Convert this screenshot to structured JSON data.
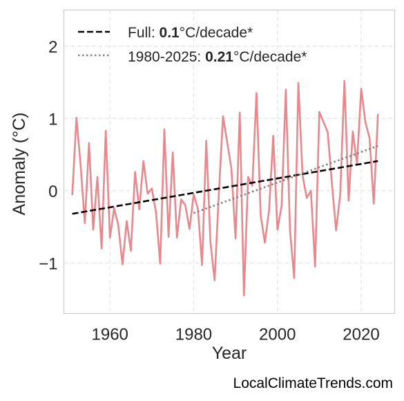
{
  "chart_data": {
    "type": "line",
    "xlabel": "Year",
    "ylabel": "Anomaly (°C)",
    "xlim": [
      1949,
      2028
    ],
    "ylim": [
      -1.7,
      2.5
    ],
    "xticks": [
      1960,
      1980,
      2000,
      2020
    ],
    "xtick_labels": [
      "1960",
      "1980",
      "2000",
      "2020"
    ],
    "yticks": [
      -1,
      0,
      1,
      2
    ],
    "ytick_labels": [
      "−1",
      "0",
      "1",
      "2"
    ],
    "grid": true,
    "legend_position": "top-left",
    "series": [
      {
        "style": "solid",
        "color": "#e8878c",
        "x": [
          1951,
          1952,
          1953,
          1954,
          1955,
          1956,
          1957,
          1958,
          1959,
          1960,
          1961,
          1962,
          1963,
          1964,
          1965,
          1966,
          1967,
          1968,
          1969,
          1970,
          1971,
          1972,
          1973,
          1974,
          1975,
          1976,
          1977,
          1978,
          1979,
          1980,
          1981,
          1982,
          1983,
          1984,
          1985,
          1986,
          1987,
          1988,
          1989,
          1990,
          1991,
          1992,
          1993,
          1994,
          1995,
          1996,
          1997,
          1998,
          1999,
          2000,
          2001,
          2002,
          2003,
          2004,
          2005,
          2006,
          2007,
          2008,
          2009,
          2010,
          2011,
          2012,
          2013,
          2014,
          2015,
          2016,
          2017,
          2018,
          2019,
          2020,
          2021,
          2022,
          2023,
          2024
        ],
        "y": [
          -0.06,
          1.01,
          0.35,
          -0.45,
          0.66,
          -0.54,
          0.19,
          -0.8,
          0.83,
          -0.65,
          -0.24,
          -0.48,
          -1.02,
          -0.42,
          -0.83,
          0.26,
          -0.26,
          0.41,
          -0.04,
          0.03,
          -0.3,
          -1.01,
          0.85,
          -0.64,
          0.53,
          -0.65,
          -0.12,
          -0.2,
          -0.53,
          -0.05,
          -0.25,
          -1.03,
          0.69,
          -0.71,
          -1.24,
          -0.05,
          1.03,
          0.67,
          0.31,
          -0.66,
          1.08,
          -1.45,
          0.19,
          0.07,
          1.35,
          -0.34,
          -0.72,
          -0.27,
          0.76,
          -0.54,
          -0.21,
          1.4,
          -0.55,
          -1.21,
          1.49,
          0.21,
          -0.1,
          0.0,
          -1.05,
          1.09,
          0.95,
          0.81,
          0.11,
          -0.55,
          -0.05,
          1.52,
          -0.14,
          0.82,
          0.37,
          1.41,
          0.95,
          0.73,
          -0.18,
          1.06
        ]
      },
      {
        "name": "Full: 0.1°C/decade*",
        "style": "dashed",
        "color": "#000000",
        "x": [
          1951,
          2024
        ],
        "y": [
          -0.32,
          0.41
        ]
      },
      {
        "name": "1980-2025: 0.21°C/decade*",
        "style": "dotted",
        "color": "#808080",
        "x": [
          1980,
          2024
        ],
        "y": [
          -0.31,
          0.62
        ]
      }
    ],
    "legend": [
      {
        "prefix": "Full: ",
        "bold": "0.1",
        "suffix": "°C/decade*",
        "style": "dashed",
        "color": "#000000"
      },
      {
        "prefix": "1980-2025: ",
        "bold": "0.21",
        "suffix": "°C/decade*",
        "style": "dotted",
        "color": "#808080"
      }
    ]
  },
  "source": "LocalClimateTrends.com"
}
